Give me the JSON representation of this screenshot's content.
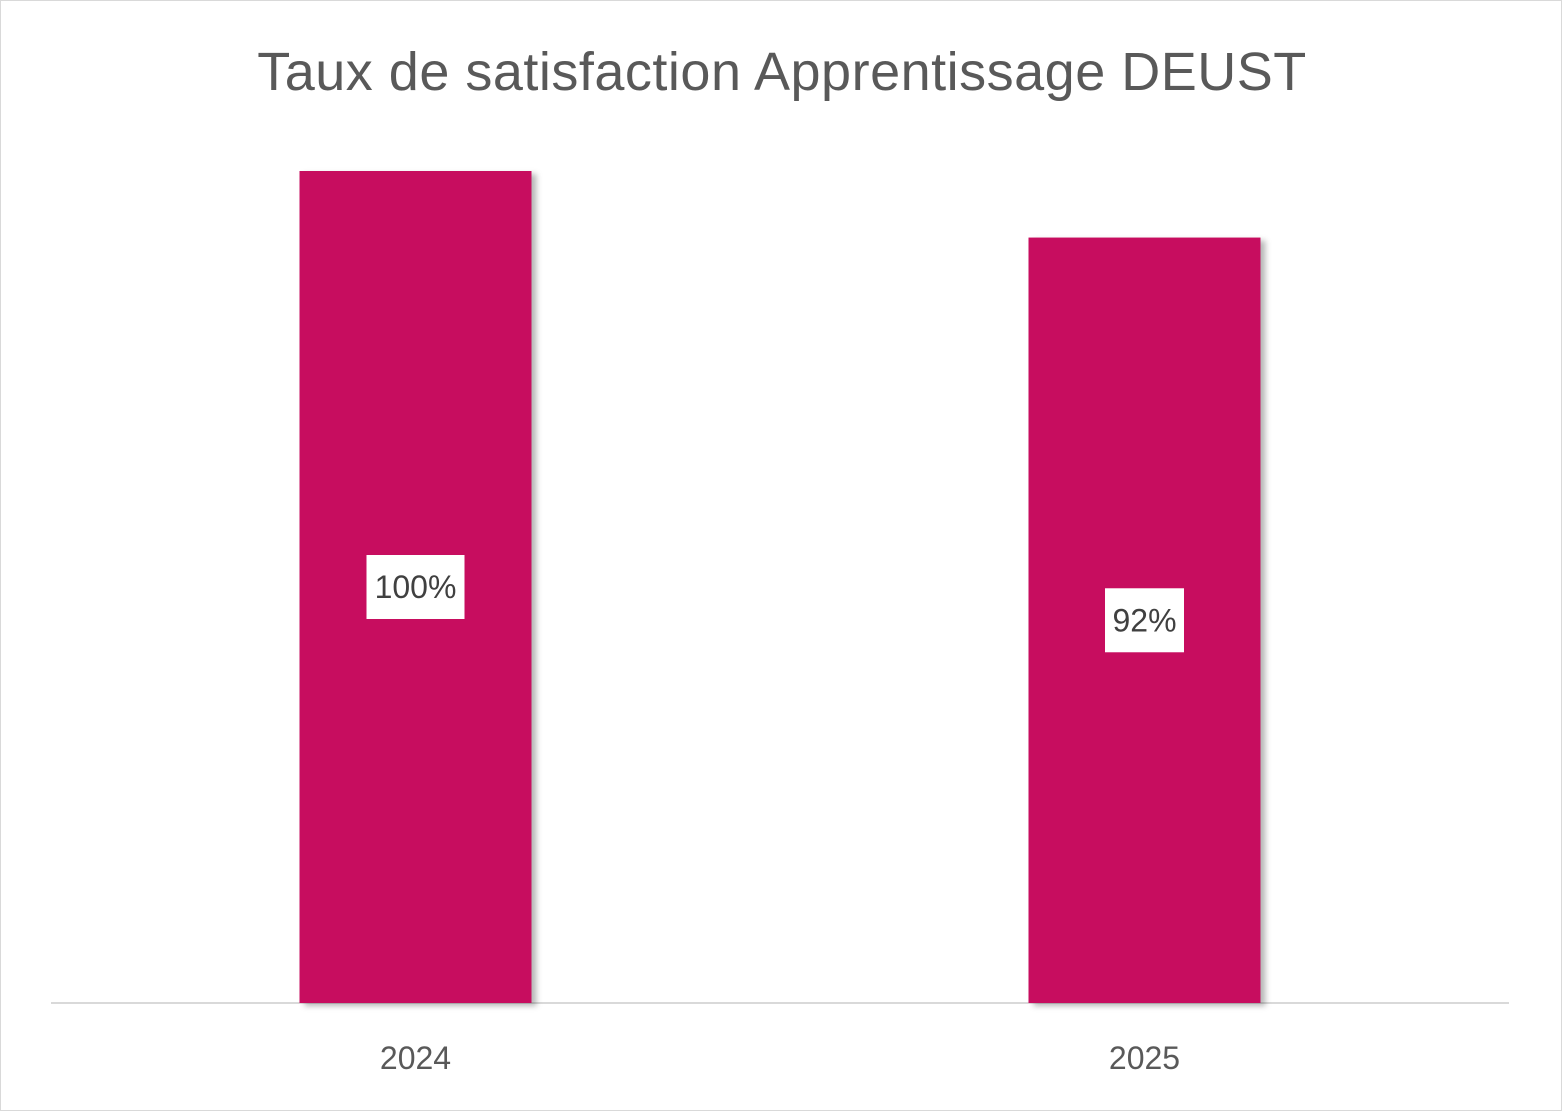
{
  "chart_data": {
    "type": "bar",
    "title": "Taux de satisfaction Apprentissage DEUST",
    "categories": [
      "2024",
      "2025"
    ],
    "values": [
      100,
      92
    ],
    "data_labels": [
      "100%",
      "92%"
    ],
    "ylim": [
      0,
      100
    ],
    "grid": false,
    "legend": "none",
    "colors": {
      "bar": "#c70a5f",
      "axis": "#d9d9d9",
      "text": "#595959"
    }
  }
}
